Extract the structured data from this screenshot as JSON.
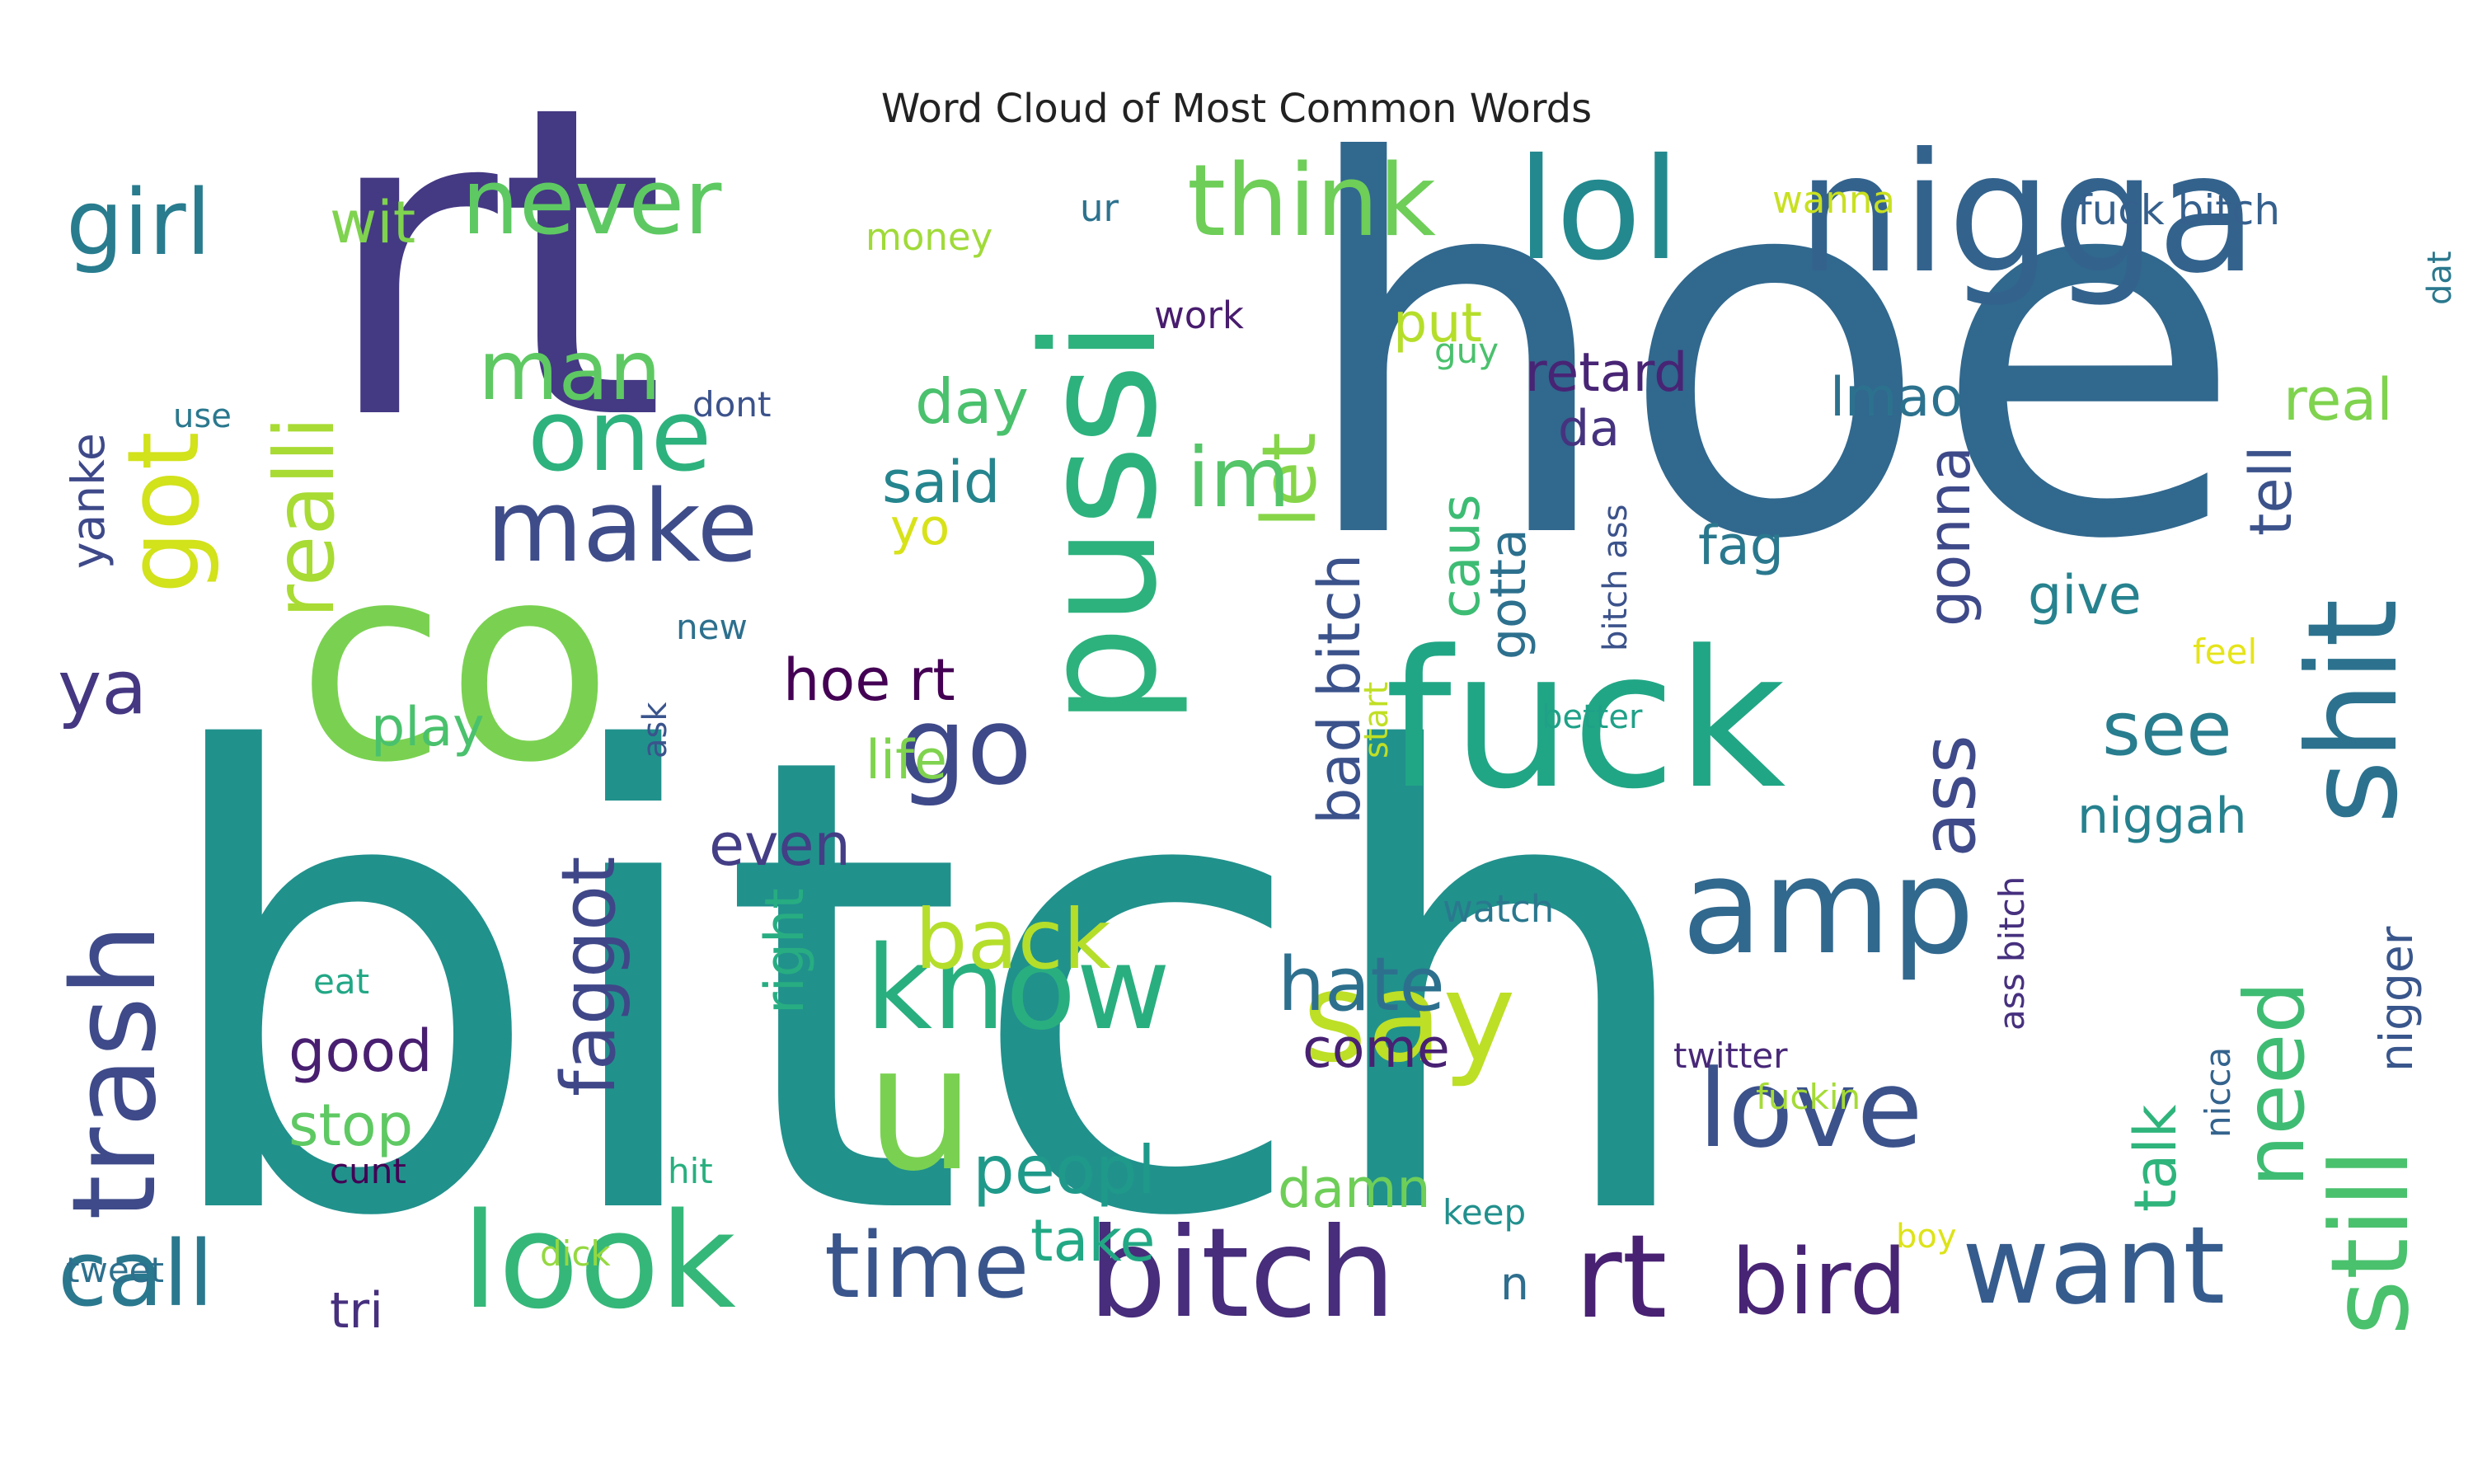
{
  "title": "Word Cloud of Most Common Words",
  "words": [
    {
      "text": "bitch",
      "color": "#21918c"
    },
    {
      "text": "hoe",
      "color": "#31688e"
    },
    {
      "text": "rt",
      "color": "#443983"
    },
    {
      "text": "co",
      "color": "#7ad151"
    },
    {
      "text": "pussi",
      "color": "#2db27d"
    },
    {
      "text": "fuck",
      "color": "#21a685"
    },
    {
      "text": "nigga",
      "color": "#33638d"
    },
    {
      "text": "lol",
      "color": "#23898e"
    },
    {
      "text": "shit",
      "color": "#2c728e"
    },
    {
      "text": "amp",
      "color": "#31688e"
    },
    {
      "text": "bitch",
      "color": "#472d7b"
    },
    {
      "text": "look",
      "color": "#35b779"
    },
    {
      "text": "rt",
      "color": "#482173"
    },
    {
      "text": "know",
      "color": "#29af7f"
    },
    {
      "text": "want",
      "color": "#365c8d"
    },
    {
      "text": "trash",
      "color": "#3e4a89"
    },
    {
      "text": "u",
      "color": "#7ad151"
    },
    {
      "text": "say",
      "color": "#bddf26"
    },
    {
      "text": "go",
      "color": "#3e4989"
    },
    {
      "text": "still",
      "color": "#4ac16d"
    },
    {
      "text": "love",
      "color": "#3b528b"
    },
    {
      "text": "think",
      "color": "#6ece58"
    },
    {
      "text": "one",
      "color": "#2db27d"
    },
    {
      "text": "make",
      "color": "#3e4c8a"
    },
    {
      "text": "girl",
      "color": "#287c8e"
    },
    {
      "text": "got",
      "color": "#d2e21b"
    },
    {
      "text": "call",
      "color": "#2a788e"
    },
    {
      "text": "time",
      "color": "#39558c"
    },
    {
      "text": "bird",
      "color": "#482475"
    },
    {
      "text": "never",
      "color": "#5ec962"
    },
    {
      "text": "man",
      "color": "#5ec962"
    },
    {
      "text": "realli",
      "color": "#a8db34"
    },
    {
      "text": "back",
      "color": "#b5de2b"
    },
    {
      "text": "faggot",
      "color": "#3f4788"
    },
    {
      "text": "need",
      "color": "#3fbc73"
    },
    {
      "text": "hate",
      "color": "#2d708e"
    },
    {
      "text": "see",
      "color": "#287d8e"
    },
    {
      "text": "ass",
      "color": "#3e4a89"
    },
    {
      "text": "let",
      "color": "#86d549"
    },
    {
      "text": "im",
      "color": "#54c568"
    },
    {
      "text": "ya",
      "color": "#453781"
    },
    {
      "text": "bad bitch",
      "color": "#3b528b"
    },
    {
      "text": "peopl",
      "color": "#1f9a8a"
    },
    {
      "text": "hoe rt",
      "color": "#440154"
    },
    {
      "text": "gonna",
      "color": "#3e4989"
    },
    {
      "text": "wit",
      "color": "#7fd34e"
    },
    {
      "text": "day",
      "color": "#4ac16d"
    },
    {
      "text": "said",
      "color": "#25858e"
    },
    {
      "text": "tell",
      "color": "#3b528b"
    },
    {
      "text": "real",
      "color": "#7fd34e"
    },
    {
      "text": "niggah",
      "color": "#26818e"
    },
    {
      "text": "good",
      "color": "#481f70"
    },
    {
      "text": "stop",
      "color": "#5ec962"
    },
    {
      "text": "take",
      "color": "#22a884"
    },
    {
      "text": "damn",
      "color": "#6ece58"
    },
    {
      "text": "tri",
      "color": "#46307e"
    },
    {
      "text": "talk",
      "color": "#2fb47c"
    },
    {
      "text": "even",
      "color": "#433e85"
    },
    {
      "text": "right",
      "color": "#27ad81"
    },
    {
      "text": "caus",
      "color": "#3dbc74"
    },
    {
      "text": "gotta",
      "color": "#2d708e"
    },
    {
      "text": "come",
      "color": "#482173"
    },
    {
      "text": "life",
      "color": "#7fd34e"
    },
    {
      "text": "play",
      "color": "#4ac16d"
    },
    {
      "text": "put",
      "color": "#b5de2b"
    },
    {
      "text": "retard",
      "color": "#482475"
    },
    {
      "text": "lmao",
      "color": "#2c728e"
    },
    {
      "text": "fag",
      "color": "#2a788e"
    },
    {
      "text": "give",
      "color": "#26828e"
    },
    {
      "text": "yanke",
      "color": "#3e4989"
    },
    {
      "text": "nigger",
      "color": "#39568c"
    },
    {
      "text": "da",
      "color": "#46337f"
    },
    {
      "text": "yo",
      "color": "#d8e219"
    },
    {
      "text": "n",
      "color": "#2e6e8e"
    },
    {
      "text": "fuck bitch",
      "color": "#35608d"
    },
    {
      "text": "wanna",
      "color": "#c8e020"
    },
    {
      "text": "ur",
      "color": "#2c728e"
    },
    {
      "text": "money",
      "color": "#a0da39"
    },
    {
      "text": "work",
      "color": "#481c6e"
    },
    {
      "text": "guy",
      "color": "#4ac16d"
    },
    {
      "text": "dont",
      "color": "#3b528b"
    },
    {
      "text": "use",
      "color": "#2a788e"
    },
    {
      "text": "new",
      "color": "#2d708e"
    },
    {
      "text": "ask",
      "color": "#3a548c"
    },
    {
      "text": "better",
      "color": "#1fa188"
    },
    {
      "text": "bitch ass",
      "color": "#3b528b"
    },
    {
      "text": "feel",
      "color": "#e5e419"
    },
    {
      "text": "start",
      "color": "#c0df25"
    },
    {
      "text": "watch",
      "color": "#2a788e"
    },
    {
      "text": "ass bitch",
      "color": "#46307e"
    },
    {
      "text": "eat",
      "color": "#22a785"
    },
    {
      "text": "twitter",
      "color": "#482878"
    },
    {
      "text": "fuckin",
      "color": "#a5db36"
    },
    {
      "text": "nicca",
      "color": "#33638d"
    },
    {
      "text": "keep",
      "color": "#21908d"
    },
    {
      "text": "boy",
      "color": "#dde318"
    },
    {
      "text": "hit",
      "color": "#29af7f"
    },
    {
      "text": "cunt",
      "color": "#440154"
    },
    {
      "text": "dick",
      "color": "#95d840"
    },
    {
      "text": "tweet",
      "color": "#2d708e"
    },
    {
      "text": "dat",
      "color": "#2a788e"
    }
  ]
}
